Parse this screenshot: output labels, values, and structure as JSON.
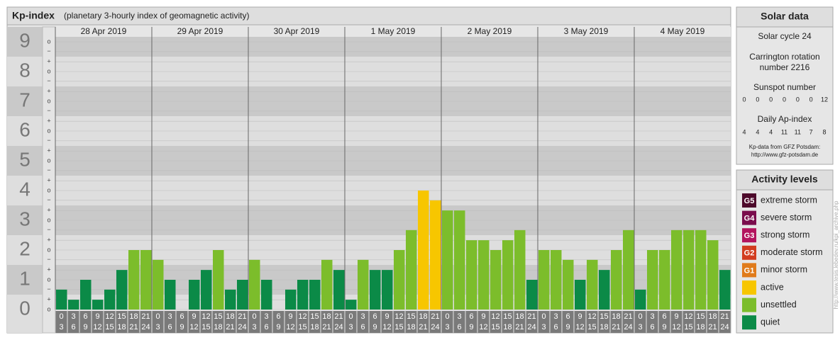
{
  "chart_data": {
    "type": "bar",
    "title": "Kp-index",
    "subtitle": "(planetary 3-hourly index of geomagnetic activity)",
    "days": [
      "28 Apr 2019",
      "29 Apr 2019",
      "30 Apr 2019",
      "1 May 2019",
      "2 May 2019",
      "3 May 2019",
      "4 May 2019"
    ],
    "hours_from": [
      0,
      3,
      6,
      9,
      12,
      15,
      18,
      21
    ],
    "hours_to": [
      3,
      6,
      9,
      12,
      15,
      18,
      21,
      24
    ],
    "values": [
      0.67,
      0.33,
      1,
      0.33,
      0.67,
      1.33,
      2,
      2,
      1.67,
      1,
      0,
      1,
      1.33,
      2,
      0.67,
      1,
      1.67,
      1,
      0,
      0.67,
      1,
      1,
      1.67,
      1.33,
      0.33,
      1.67,
      1.33,
      1.33,
      2,
      2.67,
      4,
      3.67,
      3.33,
      3.33,
      2.33,
      2.33,
      2,
      2.33,
      2.67,
      1,
      2,
      2,
      1.67,
      1,
      1.67,
      1.33,
      2,
      2.67,
      0.67,
      2,
      2,
      2.67,
      2.67,
      2.67,
      2.33,
      1.33
    ],
    "colors": [
      "#0b8a47",
      "#0b8a47",
      "#0b8a47",
      "#0b8a47",
      "#0b8a47",
      "#0b8a47",
      "#7cbd2b",
      "#7cbd2b",
      "#7cbd2b",
      "#0b8a47",
      "#0b8a47",
      "#0b8a47",
      "#0b8a47",
      "#7cbd2b",
      "#0b8a47",
      "#0b8a47",
      "#7cbd2b",
      "#0b8a47",
      "#0b8a47",
      "#0b8a47",
      "#0b8a47",
      "#0b8a47",
      "#7cbd2b",
      "#0b8a47",
      "#0b8a47",
      "#7cbd2b",
      "#0b8a47",
      "#0b8a47",
      "#7cbd2b",
      "#7cbd2b",
      "#f7c600",
      "#f7c600",
      "#7cbd2b",
      "#7cbd2b",
      "#7cbd2b",
      "#7cbd2b",
      "#7cbd2b",
      "#7cbd2b",
      "#7cbd2b",
      "#0b8a47",
      "#7cbd2b",
      "#7cbd2b",
      "#7cbd2b",
      "#0b8a47",
      "#7cbd2b",
      "#0b8a47",
      "#7cbd2b",
      "#7cbd2b",
      "#0b8a47",
      "#7cbd2b",
      "#7cbd2b",
      "#7cbd2b",
      "#7cbd2b",
      "#7cbd2b",
      "#7cbd2b",
      "#0b8a47"
    ],
    "ylim": [
      0,
      9.5
    ],
    "yticks": [
      0,
      1,
      2,
      3,
      4,
      5,
      6,
      7,
      8,
      9
    ],
    "minor_ticks": [
      {
        "value": 0,
        "label": "o"
      },
      {
        "value": 0.33,
        "label": "+"
      },
      {
        "value": 0.67,
        "label": "−"
      },
      {
        "value": 1,
        "label": "o"
      },
      {
        "value": 1.33,
        "label": "+"
      },
      {
        "value": 1.67,
        "label": "−"
      },
      {
        "value": 2,
        "label": "o"
      },
      {
        "value": 2.33,
        "label": "+"
      },
      {
        "value": 2.67,
        "label": "−"
      },
      {
        "value": 3,
        "label": "o"
      },
      {
        "value": 3.33,
        "label": "+"
      },
      {
        "value": 3.67,
        "label": "−"
      },
      {
        "value": 4,
        "label": "o"
      },
      {
        "value": 4.33,
        "label": "+"
      },
      {
        "value": 4.67,
        "label": "−"
      },
      {
        "value": 5,
        "label": "o"
      },
      {
        "value": 5.33,
        "label": "+"
      },
      {
        "value": 5.67,
        "label": "−"
      },
      {
        "value": 6,
        "label": "o"
      },
      {
        "value": 6.33,
        "label": "+"
      },
      {
        "value": 6.67,
        "label": "−"
      },
      {
        "value": 7,
        "label": "o"
      },
      {
        "value": 7.33,
        "label": "+"
      },
      {
        "value": 7.67,
        "label": "−"
      },
      {
        "value": 8,
        "label": "o"
      },
      {
        "value": 8.33,
        "label": "+"
      },
      {
        "value": 8.67,
        "label": "−"
      },
      {
        "value": 9,
        "label": "o"
      }
    ]
  },
  "solar_data": {
    "title": "Solar data",
    "cycle": "Solar cycle 24",
    "carrington": [
      "Carrington rotation",
      "number 2216"
    ],
    "sunspot_label": "Sunspot number",
    "sunspot": [
      0,
      0,
      0,
      0,
      0,
      0,
      12
    ],
    "ap_label": "Daily Ap-index",
    "ap": [
      4,
      4,
      4,
      11,
      11,
      7,
      8
    ],
    "source": [
      "Kp-data from GFZ Potsdam:",
      "http://www.gfz-potsdam.de"
    ]
  },
  "activity_levels": {
    "title": "Activity levels",
    "items": [
      {
        "badge": "G5",
        "name": "extreme storm",
        "color": "#4d0a2b"
      },
      {
        "badge": "G4",
        "name": "severe storm",
        "color": "#7a0c4c"
      },
      {
        "badge": "G3",
        "name": "strong storm",
        "color": "#b3145e"
      },
      {
        "badge": "G2",
        "name": "moderate storm",
        "color": "#d23c1f"
      },
      {
        "badge": "G1",
        "name": "minor storm",
        "color": "#e07b1b"
      },
      {
        "name": "active",
        "color": "#f7c600"
      },
      {
        "name": "unsettled",
        "color": "#7cbd2b"
      },
      {
        "name": "quiet",
        "color": "#0b8a47"
      }
    ]
  },
  "credit": "http://www.tesis.lebedev.ru/kpi_archive.php"
}
